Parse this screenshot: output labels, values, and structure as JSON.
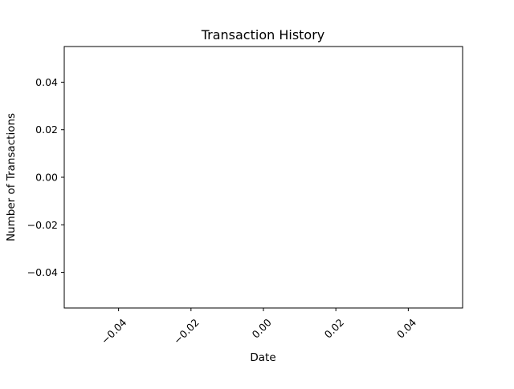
{
  "chart_data": {
    "type": "line",
    "title": "Transaction History",
    "xlabel": "Date",
    "ylabel": "Number of Transactions",
    "xlim": [
      -0.055,
      0.055
    ],
    "ylim": [
      -0.055,
      0.055
    ],
    "x_ticks": [
      {
        "value": -0.04,
        "label": "−0.04"
      },
      {
        "value": -0.02,
        "label": "−0.02"
      },
      {
        "value": 0.0,
        "label": "0.00"
      },
      {
        "value": 0.02,
        "label": "0.02"
      },
      {
        "value": 0.04,
        "label": "0.04"
      }
    ],
    "y_ticks": [
      {
        "value": 0.04,
        "label": "0.04"
      },
      {
        "value": 0.02,
        "label": "0.02"
      },
      {
        "value": 0.0,
        "label": "0.00"
      },
      {
        "value": -0.02,
        "label": "−0.02"
      },
      {
        "value": -0.04,
        "label": "−0.04"
      }
    ],
    "x_tick_label_rotation_deg": 45,
    "grid": false,
    "legend": "none",
    "series": [
      {
        "x": [],
        "y": []
      }
    ],
    "colors": {
      "axes": "#000000",
      "background": "#ffffff"
    }
  }
}
